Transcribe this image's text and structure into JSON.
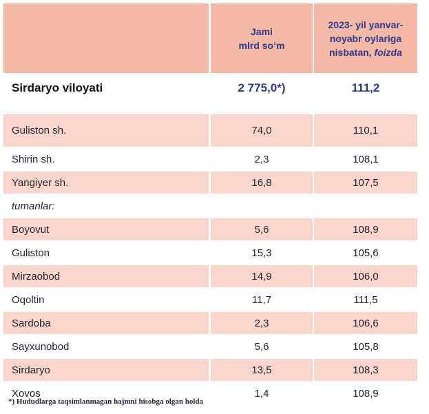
{
  "header": {
    "col1_line1": "Jami",
    "col1_line2": "mlrd so‘m",
    "col2_line1": "2023- yil yanvar-",
    "col2_line2": "noyabr oylariga",
    "col2_line3_prefix": "nisbatan, ",
    "col2_line3_italic": "foizda"
  },
  "total": {
    "name": "Sirdaryo viloyati",
    "value": "2 775,0*)",
    "percent": "111,2"
  },
  "cities": [
    {
      "name": "Guliston  sh.",
      "value": "74,0",
      "percent": "110,1"
    },
    {
      "name": "Shirin sh.",
      "value": "2,3",
      "percent": "108,1"
    },
    {
      "name": "Yangiyer sh.",
      "value": "16,8",
      "percent": "107,5"
    }
  ],
  "section_label": "tumanlar:",
  "districts": [
    {
      "name": "Boyovut",
      "value": "5,6",
      "percent": "108,9"
    },
    {
      "name": "Guliston",
      "value": "15,3",
      "percent": "105,6"
    },
    {
      "name": "Mirzaobod",
      "value": "14,9",
      "percent": "106,0"
    },
    {
      "name": "Oqoltin",
      "value": "11,7",
      "percent": "111,5"
    },
    {
      "name": "Sardoba",
      "value": "2,3",
      "percent": "106,6"
    },
    {
      "name": "Sayxunobod",
      "value": "5,6",
      "percent": "105,8"
    },
    {
      "name": "Sirdaryo",
      "value": "13,5",
      "percent": "108,3"
    },
    {
      "name": "Xovos",
      "value": "1,4",
      "percent": "108,9"
    }
  ],
  "footnote": "*) Hududlarga taqsimlanmagan hajmni hisobga olgan holda",
  "colors": {
    "header_bg": "#f4b8a6",
    "row_shade": "#f9d5cb",
    "accent_text": "#2a3a8c"
  }
}
